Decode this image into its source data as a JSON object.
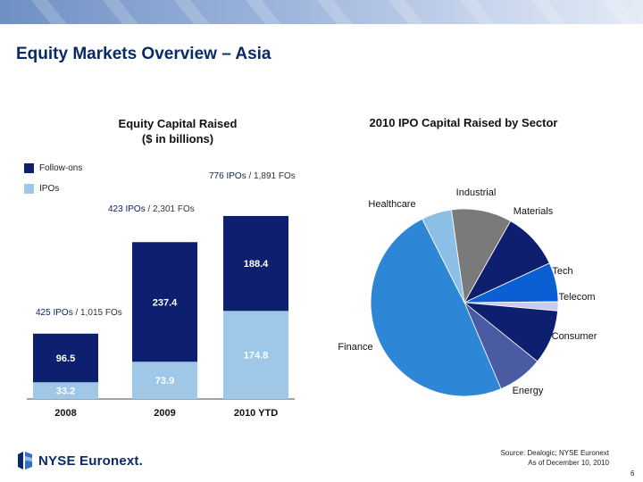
{
  "page": {
    "title": "Equity Markets Overview – Asia",
    "source_line1": "Source: Dealogic; NYSE Euronext",
    "source_line2": "As of December 10, 2010",
    "page_number": "6",
    "logo_text": "NYSE Euronext.",
    "logo_icon": "nyse-euronext-globe-icon"
  },
  "colors": {
    "follow_ons": "#0d1f6e",
    "ipos": "#9ec7e8",
    "title": "#0a2a66"
  },
  "chart_data": [
    {
      "type": "bar",
      "stacked": true,
      "title_line1": "Equity Capital Raised",
      "title_line2": "($ in billions)",
      "categories": [
        "2008",
        "2009",
        "2010 YTD"
      ],
      "series": [
        {
          "name": "IPOs",
          "values": [
            33.2,
            73.9,
            174.8
          ],
          "value_labels": [
            "33.2",
            "73.9",
            "174.8"
          ]
        },
        {
          "name": "Follow-ons",
          "values": [
            96.5,
            237.4,
            188.4
          ],
          "value_labels": [
            "96.5",
            "237.4",
            "188.4"
          ]
        }
      ],
      "legend": [
        "Follow-ons",
        "IPOs"
      ],
      "legend_position": "top-left",
      "annotations": [
        {
          "ipos": "425 IPOs",
          "sep": " / ",
          "fos": "1,015 FOs"
        },
        {
          "ipos": "423 IPOs",
          "sep": " / ",
          "fos": "2,301 FOs"
        },
        {
          "ipos": "776 IPOs",
          "sep": " / ",
          "fos": "1,891 FOs"
        }
      ],
      "ylim": [
        0,
        400
      ],
      "grid": false
    },
    {
      "type": "pie",
      "title": "2010 IPO Capital Raised by Sector",
      "slices": [
        {
          "label": "Industrial",
          "value": 10.0,
          "color": "#7a7a7a"
        },
        {
          "label": "Materials",
          "value": 9.5,
          "color": "#0d1f6e"
        },
        {
          "label": "Tech",
          "value": 6.5,
          "color": "#0a5fd4"
        },
        {
          "label": "Telecom",
          "value": 1.5,
          "color": "#c9cbf2"
        },
        {
          "label": "Consumer",
          "value": 9.0,
          "color": "#0d1f6e"
        },
        {
          "label": "Energy",
          "value": 7.5,
          "color": "#4a5ba3"
        },
        {
          "label": "Finance",
          "value": 47.0,
          "color": "#2e86d6"
        },
        {
          "label": "Healthcare",
          "value": 5.0,
          "color": "#8bbfe6"
        }
      ]
    }
  ]
}
